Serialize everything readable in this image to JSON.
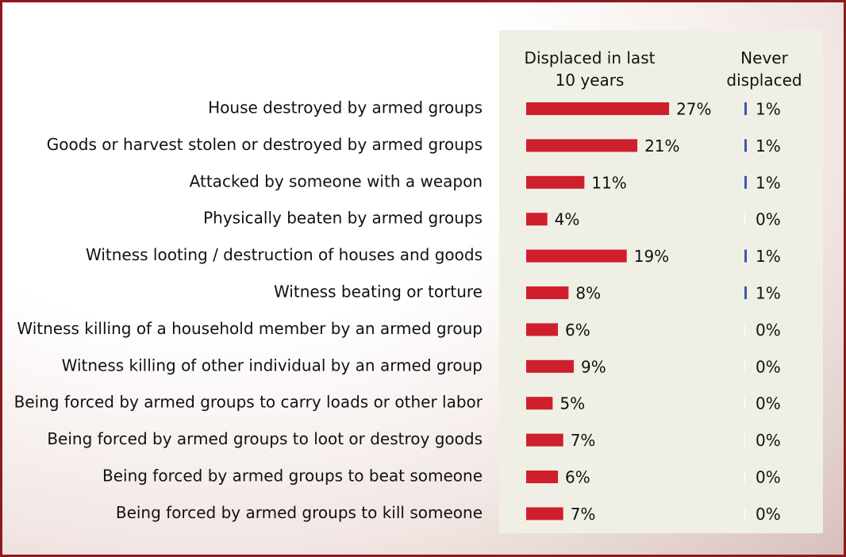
{
  "chart_data": {
    "type": "bar",
    "orientation": "horizontal",
    "categories": [
      "House destroyed by armed groups",
      "Goods or harvest stolen or destroyed by armed groups",
      "Attacked by someone with a weapon",
      "Physically beaten by armed groups",
      "Witness looting / destruction of houses and goods",
      "Witness beating or torture",
      "Witness killing of a household member by an armed group",
      "Witness killing of other individual  by an armed group",
      "Being forced by armed groups to carry loads or other labor",
      "Being forced by armed groups to loot or destroy goods",
      "Being forced by armed groups to beat someone",
      "Being forced by armed groups to kill someone"
    ],
    "series": [
      {
        "name": "Displaced in last 10 years",
        "color": "#cf1f2d",
        "values": [
          27,
          21,
          11,
          4,
          19,
          8,
          6,
          9,
          5,
          7,
          6,
          7
        ],
        "value_labels": [
          "27%",
          "21%",
          "11%",
          "4%",
          "19%",
          "8%",
          "6%",
          "9%",
          "5%",
          "7%",
          "6%",
          "7%"
        ]
      },
      {
        "name": "Never displaced",
        "color": "#3a58b0",
        "values": [
          1,
          1,
          1,
          0,
          1,
          1,
          0,
          0,
          0,
          0,
          0,
          0
        ],
        "value_labels": [
          "1%",
          "1%",
          "1%",
          "0%",
          "1%",
          "1%",
          "0%",
          "0%",
          "0%",
          "0%",
          "0%",
          "0%"
        ]
      }
    ]
  }
}
